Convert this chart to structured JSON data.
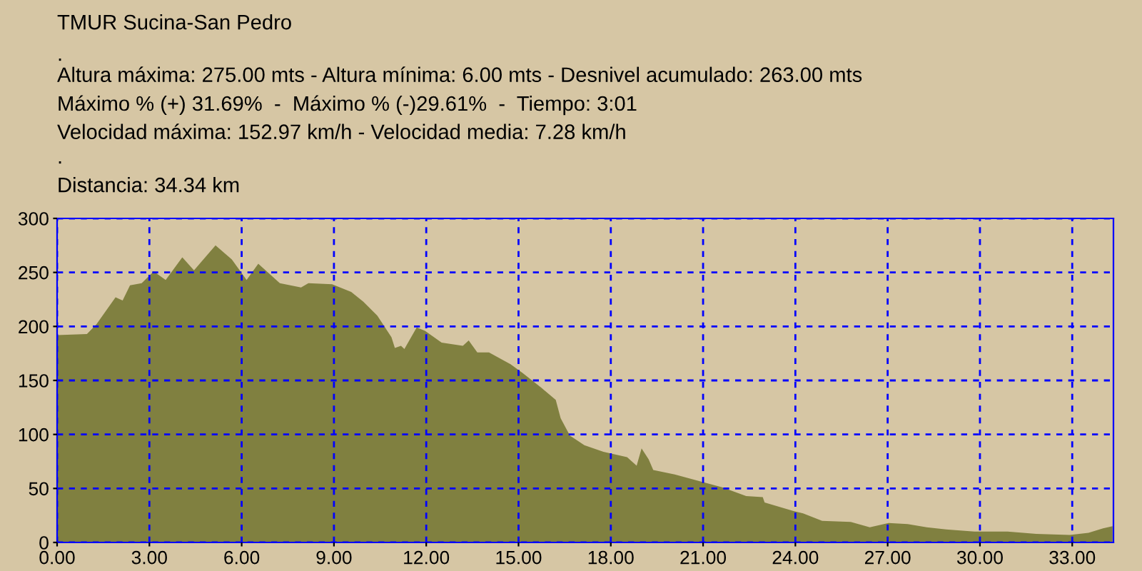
{
  "chart_data": {
    "type": "area",
    "title": "TMUR Sucina-San Pedro",
    "annotations": [
      ".",
      "Altura máxima: 275.00 mts - Altura mínima: 6.00 mts - Desnivel acumulado: 263.00 mts",
      "Máximo % (+) 31.69%  -  Máximo % (-)29.61%  -  Tiempo: 3:01",
      "Velocidad máxima: 152.97 km/h - Velocidad media: 7.28 km/h",
      ".",
      "Distancia: 34.34 km"
    ],
    "series": [
      {
        "color": "#808040",
        "x": [
          0,
          0.97,
          1.28,
          1.9,
          2.13,
          2.37,
          2.75,
          3.14,
          3.53,
          4.07,
          4.45,
          5.15,
          5.68,
          6.16,
          6.54,
          7.24,
          7.93,
          8.17,
          8.94,
          9.56,
          9.95,
          10.41,
          10.87,
          10.98,
          11.18,
          11.29,
          11.69,
          11.96,
          12.5,
          13.19,
          13.38,
          13.66,
          14.04,
          14.74,
          15.13,
          15.75,
          16.21,
          16.37,
          16.67,
          17.14,
          17.76,
          18.53,
          18.84,
          19.0,
          19.23,
          19.38,
          20.08,
          20.85,
          21.62,
          22.4,
          22.94,
          23.0,
          23.94,
          24.25,
          24.87,
          25.8,
          26.42,
          27.03,
          27.65,
          28.27,
          28.9,
          29.82,
          30.9,
          31.83,
          32.92,
          33.53,
          34.0,
          34.31
        ],
        "values": [
          192,
          193,
          202,
          227,
          224,
          238,
          240,
          251,
          243,
          264,
          252,
          275,
          262,
          243,
          258,
          240,
          236,
          240,
          239,
          232,
          223,
          210,
          190,
          180,
          182,
          179,
          199,
          196,
          185,
          182,
          187,
          176,
          176,
          165,
          157,
          143,
          132,
          115,
          99,
          90,
          84,
          79,
          71,
          87,
          77,
          67,
          63,
          57,
          51,
          43,
          42,
          37,
          29,
          27,
          20,
          19,
          14,
          18,
          17,
          14,
          12,
          10,
          10,
          8,
          7,
          9,
          13,
          15
        ]
      }
    ],
    "xlim": [
      0,
      34.34
    ],
    "xticks": [
      {
        "value": 0,
        "label": "0.00"
      },
      {
        "value": 3,
        "label": "3.00"
      },
      {
        "value": 6,
        "label": "6.00"
      },
      {
        "value": 9,
        "label": "9.00"
      },
      {
        "value": 12,
        "label": "12.00"
      },
      {
        "value": 15,
        "label": "15.00"
      },
      {
        "value": 18,
        "label": "18.00"
      },
      {
        "value": 21,
        "label": "21.00"
      },
      {
        "value": 24,
        "label": "24.00"
      },
      {
        "value": 27,
        "label": "27.00"
      },
      {
        "value": 30,
        "label": "30.00"
      },
      {
        "value": 33,
        "label": "33.00"
      }
    ],
    "ylim": [
      0,
      300
    ],
    "yticks": [
      0,
      50,
      100,
      150,
      200,
      250,
      300
    ],
    "grid": true
  }
}
